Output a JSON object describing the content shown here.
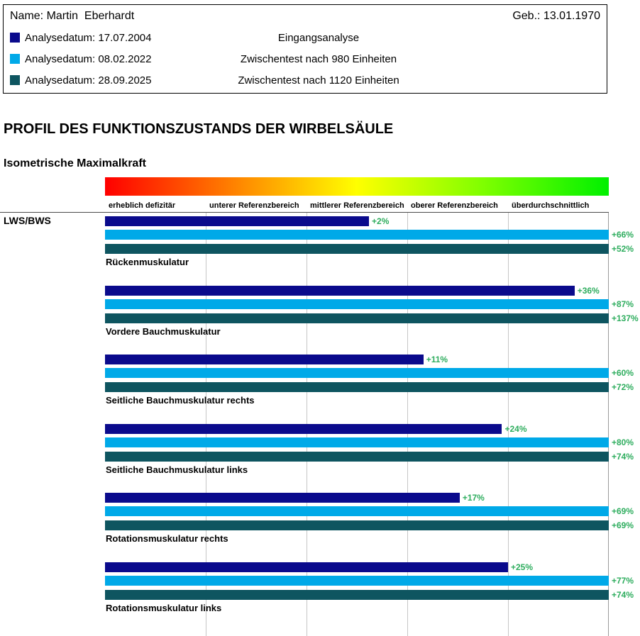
{
  "header": {
    "name_label": "Name:",
    "name_value": "Martin  Eberhardt",
    "birth_label": "Geb.:",
    "birth_value": "13.01.1970",
    "analyses": [
      {
        "label": "Analysedatum:",
        "date": "17.07.2004",
        "description": "Eingangsanalyse",
        "color": "#0a0a8c"
      },
      {
        "label": "Analysedatum:",
        "date": "08.02.2022",
        "description": "Zwischentest nach 980 Einheiten",
        "color": "#00a9e8"
      },
      {
        "label": "Analysedatum:",
        "date": "28.09.2025",
        "description": "Zwischentest nach 1120 Einheiten",
        "color": "#0e5560"
      }
    ]
  },
  "page_title": "PROFIL DES FUNKTIONSZUSTANDS DER WIRBELSÄULE",
  "section_title": "Isometrische Maximalkraft",
  "region_label": "LWS/BWS",
  "chart_data": {
    "type": "bar",
    "orientation": "horizontal",
    "title": "Isometrische Maximalkraft",
    "axis_zones": [
      "erheblich defizitär",
      "unterer Referenzbereich",
      "mittlerer Referenzbereich",
      "oberer Referenzbereich",
      "überdurchschnittlich"
    ],
    "axis_gradient": [
      "#ff0000",
      "#ff7f00",
      "#ffff00",
      "#7fff00",
      "#00f000"
    ],
    "categories": [
      "Rückenmuskulatur",
      "Vordere Bauchmuskulatur",
      "Seitliche Bauchmuskulatur rechts",
      "Seitliche Bauchmuskulatur links",
      "Rotationsmuskulatur rechts",
      "Rotationsmuskulatur links"
    ],
    "series": [
      {
        "name": "Analysedatum 17.07.2004 — Eingangsanalyse",
        "color": "#0a0a8c",
        "values": [
          2,
          36,
          11,
          24,
          17,
          25
        ]
      },
      {
        "name": "Analysedatum 08.02.2022 — Zwischentest nach 980 Einheiten",
        "color": "#00a9e8",
        "values": [
          66,
          87,
          60,
          80,
          69,
          77
        ]
      },
      {
        "name": "Analysedatum 28.09.2025 — Zwischentest nach 1120 Einheiten",
        "color": "#0e5560",
        "values": [
          52,
          137,
          72,
          74,
          69,
          74
        ]
      }
    ],
    "value_prefix": "+",
    "value_suffix": "%",
    "value_label_color": "#2ead5e",
    "grid": true,
    "scale": {
      "zero_position_pct": 50,
      "pct_per_unit": 1.2,
      "clamp_pct": 100
    }
  }
}
